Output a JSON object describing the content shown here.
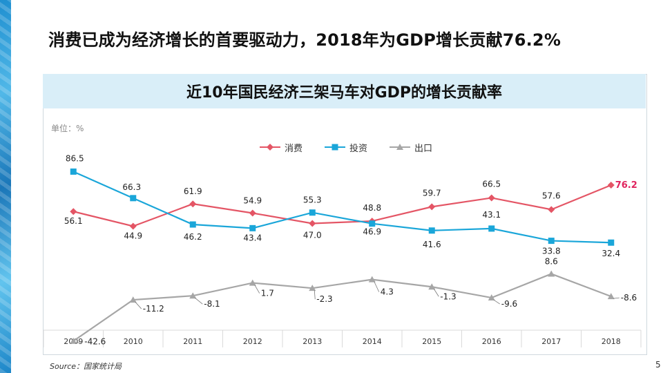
{
  "slide": {
    "title": "消费已成为经济增长的首要驱动力，2018年为GDP增长贡献76.2%",
    "source": "Source：国家统计局",
    "page_number": "5"
  },
  "chart_data": {
    "type": "line",
    "title": "近10年国民经济三架马车对GDP的增长贡献率",
    "unit_label": "单位：%",
    "categories": [
      "2009",
      "2010",
      "2011",
      "2012",
      "2013",
      "2014",
      "2015",
      "2016",
      "2017",
      "2018"
    ],
    "series": [
      {
        "name": "消费",
        "color": "#e45565",
        "marker": "diamond",
        "values": [
          56.1,
          44.9,
          61.9,
          54.9,
          47.0,
          48.8,
          59.7,
          66.5,
          57.6,
          76.2
        ],
        "labels": [
          "56.1",
          "44.9",
          "61.9",
          "54.9",
          "47.0",
          "48.8",
          "59.7",
          "66.5",
          "57.6",
          "76.2"
        ]
      },
      {
        "name": "投资",
        "color": "#1aa6d9",
        "marker": "square",
        "values": [
          86.5,
          66.3,
          46.2,
          43.4,
          55.3,
          46.9,
          41.6,
          43.1,
          33.8,
          32.4
        ],
        "labels": [
          "86.5",
          "66.3",
          "46.2",
          "43.4",
          "55.3",
          "46.9",
          "41.6",
          "43.1",
          "33.8",
          "32.4"
        ]
      },
      {
        "name": "出口",
        "color": "#a6a6a6",
        "marker": "triangle",
        "values": [
          -42.6,
          -11.2,
          -8.1,
          1.7,
          -2.3,
          4.3,
          -1.3,
          -9.6,
          8.6,
          -8.6
        ],
        "labels": [
          "-42.6",
          "-11.2",
          "-8.1",
          "1.7",
          "-2.3",
          "4.3",
          "-1.3",
          "-9.6",
          "8.6",
          "-8.6"
        ]
      }
    ],
    "highlight_color": "#e0245e",
    "grid": "vertical separators",
    "legend_position": "top-center"
  }
}
